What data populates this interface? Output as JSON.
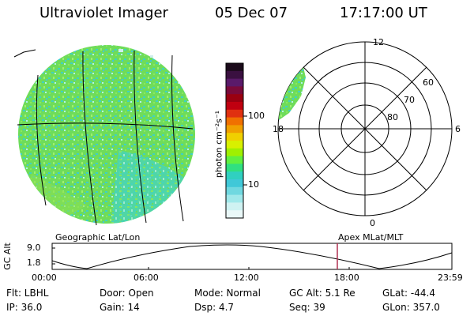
{
  "header": {
    "title": "Ultraviolet Imager",
    "date": "05 Dec 07",
    "time": "17:17:00 UT"
  },
  "geo_panel": {
    "label": "Geographic Lat/Lon"
  },
  "polar_panel": {
    "label": "Apex MLat/MLT",
    "mlt_labels": {
      "top": "12",
      "left": "18",
      "right": "6",
      "bottom": "0"
    },
    "lat_labels": [
      "60",
      "70",
      "80"
    ]
  },
  "colorbar": {
    "unit_label": "photon cm⁻²s⁻¹",
    "ticks": [
      "100",
      "10"
    ],
    "colors": [
      "#1a0a1a",
      "#3a1040",
      "#5a1a6a",
      "#7a0a3a",
      "#9a0010",
      "#c00010",
      "#e03010",
      "#f07000",
      "#f0a000",
      "#f0d000",
      "#d8f000",
      "#a0f000",
      "#60f040",
      "#30e080",
      "#30d0c0",
      "#40c8d8",
      "#70d8e0",
      "#a0e8ea",
      "#cff2f2",
      "#eaf8f8"
    ]
  },
  "altitude_plot": {
    "ylabel": "GC Alt",
    "yticks": [
      "9.0",
      "1.8"
    ],
    "xticks": [
      "00:00",
      "06:00",
      "12:00",
      "18:00",
      "23:59"
    ],
    "marker_time": "17:17"
  },
  "info": {
    "flt": "Flt: LBHL",
    "ip": "IP: 36.0",
    "door": "Door: Open",
    "gain": "Gain: 14",
    "mode": "Mode: Normal",
    "dsp": "Dsp:     4.7",
    "gcalt": "GC Alt: 5.1 Re",
    "seq": "Seq: 39",
    "glat": "GLat: -44.4",
    "glon": "GLon: 357.0"
  },
  "colors": {
    "disk_green": "#7ae050",
    "disk_cyan": "#40d8c0",
    "marker": "#b03050"
  }
}
